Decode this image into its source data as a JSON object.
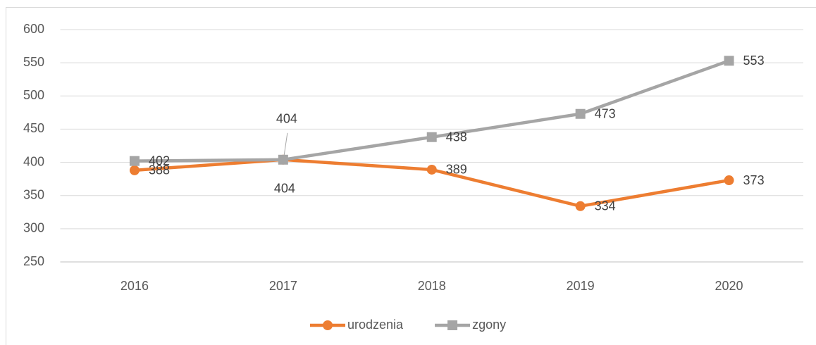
{
  "chart_data": {
    "type": "line",
    "categories": [
      "2016",
      "2017",
      "2018",
      "2019",
      "2020"
    ],
    "series": [
      {
        "name": "urodzenia",
        "color": "#ed7d31",
        "values": [
          388,
          404,
          389,
          334,
          373
        ]
      },
      {
        "name": "zgony",
        "color": "#a5a5a5",
        "values": [
          402,
          404,
          438,
          473,
          553
        ]
      }
    ],
    "ylim": [
      250,
      600
    ],
    "yticks": [
      250,
      300,
      350,
      400,
      450,
      500,
      550,
      600
    ],
    "grid": true,
    "legend": "bottom"
  }
}
